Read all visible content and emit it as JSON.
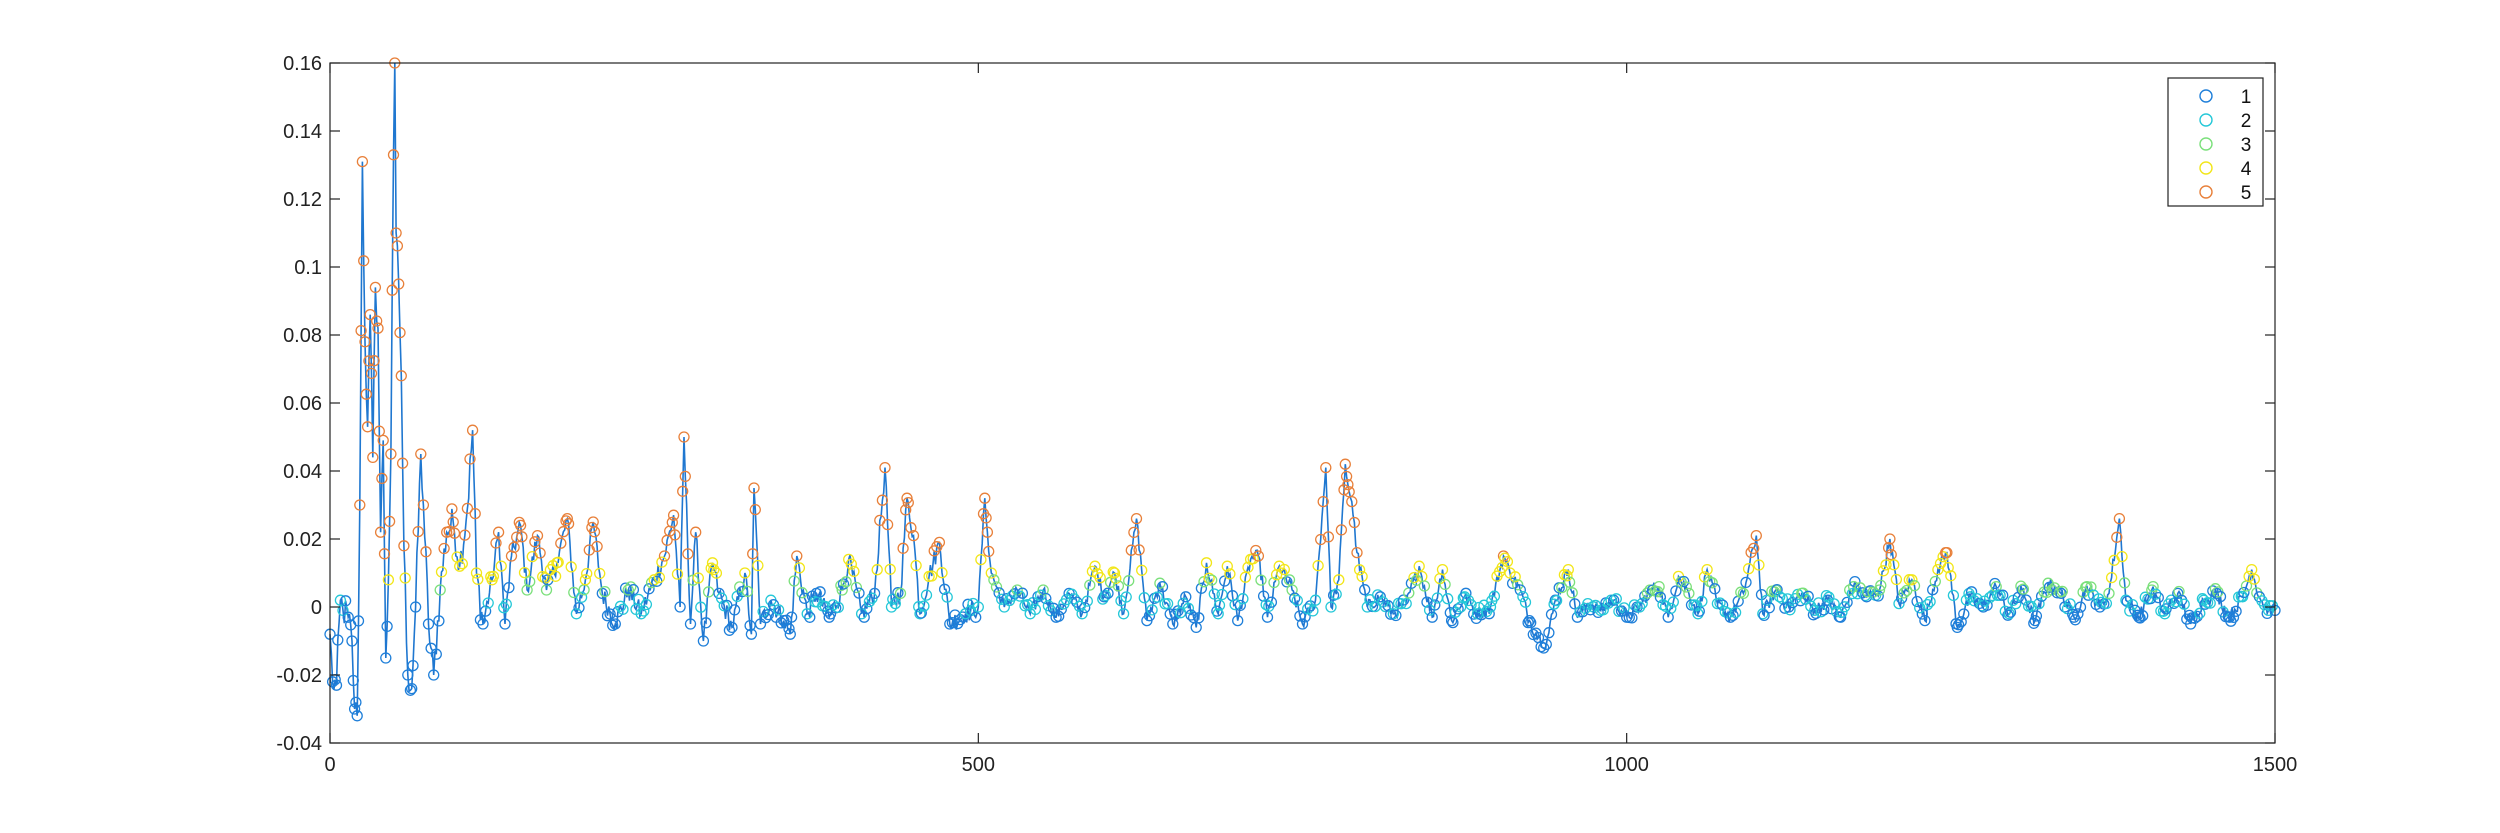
{
  "chart_data": {
    "type": "line",
    "title": "",
    "xlabel": "",
    "ylabel": "",
    "xlim": [
      0,
      1500
    ],
    "ylim": [
      -0.04,
      0.16
    ],
    "xticks": [
      0,
      500,
      1000,
      1500
    ],
    "xtick_labels": [
      "0",
      "500",
      "1000",
      "1500"
    ],
    "yticks": [
      -0.04,
      -0.02,
      0,
      0.02,
      0.04,
      0.06,
      0.08,
      0.1,
      0.12,
      0.14,
      0.16
    ],
    "ytick_labels": [
      "-0.04",
      "-0.02",
      "0",
      "0.02",
      "0.04",
      "0.06",
      "0.08",
      "0.1",
      "0.12",
      "0.14",
      "0.16"
    ],
    "grid": false,
    "legend_position": "top-right",
    "line_color": "#1f77d0",
    "marker": "circle-open",
    "series": [
      {
        "name": "1",
        "color": "#1f7fd9"
      },
      {
        "name": "2",
        "color": "#25c8d8"
      },
      {
        "name": "3",
        "color": "#7be07b"
      },
      {
        "name": "4",
        "color": "#f2e619"
      },
      {
        "name": "5",
        "color": "#e8803a"
      }
    ],
    "key_points": [
      [
        0,
        -0.008
      ],
      [
        2,
        -0.022
      ],
      [
        5,
        -0.023
      ],
      [
        8,
        0.002
      ],
      [
        10,
        -0.001
      ],
      [
        14,
        -0.003
      ],
      [
        17,
        -0.01
      ],
      [
        19,
        -0.03
      ],
      [
        21,
        -0.032
      ],
      [
        23,
        0.03
      ],
      [
        25,
        0.131
      ],
      [
        27,
        0.078
      ],
      [
        29,
        0.053
      ],
      [
        31,
        0.086
      ],
      [
        33,
        0.044
      ],
      [
        35,
        0.094
      ],
      [
        37,
        0.082
      ],
      [
        39,
        0.022
      ],
      [
        41,
        0.049
      ],
      [
        43,
        -0.015
      ],
      [
        45,
        0.008
      ],
      [
        47,
        0.045
      ],
      [
        49,
        0.133
      ],
      [
        50,
        0.16
      ],
      [
        51,
        0.11
      ],
      [
        53,
        0.095
      ],
      [
        55,
        0.068
      ],
      [
        57,
        0.018
      ],
      [
        60,
        -0.02
      ],
      [
        63,
        -0.024
      ],
      [
        66,
        0.0
      ],
      [
        70,
        0.045
      ],
      [
        72,
        0.03
      ],
      [
        76,
        -0.005
      ],
      [
        80,
        -0.02
      ],
      [
        85,
        0.005
      ],
      [
        90,
        0.022
      ],
      [
        95,
        0.025
      ],
      [
        100,
        0.012
      ],
      [
        106,
        0.029
      ],
      [
        110,
        0.052
      ],
      [
        113,
        0.01
      ],
      [
        118,
        -0.005
      ],
      [
        125,
        0.008
      ],
      [
        130,
        0.022
      ],
      [
        135,
        -0.005
      ],
      [
        140,
        0.015
      ],
      [
        147,
        0.024
      ],
      [
        152,
        0.005
      ],
      [
        160,
        0.021
      ],
      [
        167,
        0.005
      ],
      [
        175,
        0.013
      ],
      [
        183,
        0.026
      ],
      [
        190,
        -0.002
      ],
      [
        197,
        0.008
      ],
      [
        203,
        0.025
      ],
      [
        210,
        0.004
      ],
      [
        220,
        -0.005
      ],
      [
        230,
        0.005
      ],
      [
        240,
        -0.002
      ],
      [
        250,
        0.008
      ],
      [
        258,
        0.015
      ],
      [
        265,
        0.027
      ],
      [
        270,
        0.0
      ],
      [
        273,
        0.05
      ],
      [
        278,
        -0.005
      ],
      [
        282,
        0.022
      ],
      [
        288,
        -0.01
      ],
      [
        295,
        0.013
      ],
      [
        300,
        0.004
      ],
      [
        310,
        -0.006
      ],
      [
        320,
        0.01
      ],
      [
        325,
        -0.008
      ],
      [
        327,
        0.035
      ],
      [
        332,
        -0.005
      ],
      [
        340,
        0.002
      ],
      [
        350,
        -0.004
      ],
      [
        355,
        -0.008
      ],
      [
        360,
        0.015
      ],
      [
        368,
        -0.002
      ],
      [
        375,
        0.004
      ],
      [
        385,
        -0.003
      ],
      [
        395,
        0.005
      ],
      [
        400,
        0.014
      ],
      [
        410,
        -0.002
      ],
      [
        420,
        0.004
      ],
      [
        428,
        0.041
      ],
      [
        433,
        0.0
      ],
      [
        440,
        0.004
      ],
      [
        445,
        0.032
      ],
      [
        450,
        0.021
      ],
      [
        455,
        -0.002
      ],
      [
        462,
        0.009
      ],
      [
        470,
        0.019
      ],
      [
        478,
        -0.005
      ],
      [
        490,
        -0.002
      ],
      [
        500,
        0.0
      ],
      [
        505,
        0.032
      ],
      [
        507,
        0.022
      ],
      [
        510,
        0.01
      ],
      [
        520,
        0.0
      ],
      [
        530,
        0.005
      ],
      [
        540,
        -0.002
      ],
      [
        550,
        0.005
      ],
      [
        560,
        -0.003
      ],
      [
        570,
        0.004
      ],
      [
        580,
        -0.002
      ],
      [
        590,
        0.012
      ],
      [
        597,
        0.003
      ],
      [
        605,
        0.01
      ],
      [
        612,
        -0.002
      ],
      [
        622,
        0.026
      ],
      [
        630,
        -0.004
      ],
      [
        640,
        0.007
      ],
      [
        650,
        -0.005
      ],
      [
        660,
        0.003
      ],
      [
        668,
        -0.006
      ],
      [
        676,
        0.013
      ],
      [
        685,
        -0.002
      ],
      [
        692,
        0.012
      ],
      [
        700,
        -0.004
      ],
      [
        710,
        0.014
      ],
      [
        716,
        0.015
      ],
      [
        723,
        -0.003
      ],
      [
        732,
        0.012
      ],
      [
        742,
        0.005
      ],
      [
        750,
        -0.005
      ],
      [
        760,
        0.002
      ],
      [
        768,
        0.041
      ],
      [
        772,
        0.0
      ],
      [
        778,
        0.008
      ],
      [
        783,
        0.042
      ],
      [
        785,
        0.036
      ],
      [
        788,
        0.031
      ],
      [
        792,
        0.016
      ],
      [
        800,
        0.0
      ],
      [
        810,
        0.003
      ],
      [
        820,
        -0.002
      ],
      [
        830,
        0.001
      ],
      [
        840,
        0.012
      ],
      [
        850,
        -0.003
      ],
      [
        858,
        0.011
      ],
      [
        865,
        -0.004
      ],
      [
        875,
        0.003
      ],
      [
        885,
        -0.002
      ],
      [
        895,
        0.0
      ],
      [
        905,
        0.015
      ],
      [
        910,
        0.01
      ],
      [
        918,
        0.005
      ],
      [
        925,
        -0.004
      ],
      [
        932,
        -0.009
      ],
      [
        938,
        -0.011
      ],
      [
        945,
        0.002
      ],
      [
        955,
        0.011
      ],
      [
        962,
        -0.003
      ],
      [
        970,
        0.001
      ],
      [
        980,
        -0.001
      ],
      [
        990,
        0.002
      ],
      [
        1000,
        -0.003
      ],
      [
        1010,
        0.0
      ],
      [
        1018,
        0.005
      ],
      [
        1025,
        0.006
      ],
      [
        1032,
        -0.003
      ],
      [
        1040,
        0.009
      ],
      [
        1048,
        0.004
      ],
      [
        1055,
        -0.002
      ],
      [
        1062,
        0.011
      ],
      [
        1070,
        0.001
      ],
      [
        1080,
        -0.003
      ],
      [
        1090,
        0.004
      ],
      [
        1100,
        0.021
      ],
      [
        1105,
        -0.002
      ],
      [
        1115,
        0.005
      ],
      [
        1125,
        0.0
      ],
      [
        1135,
        0.004
      ],
      [
        1145,
        -0.001
      ],
      [
        1155,
        0.002
      ],
      [
        1165,
        -0.003
      ],
      [
        1175,
        0.006
      ],
      [
        1185,
        0.003
      ],
      [
        1195,
        0.005
      ],
      [
        1203,
        0.02
      ],
      [
        1210,
        0.001
      ],
      [
        1220,
        0.008
      ],
      [
        1230,
        -0.004
      ],
      [
        1240,
        0.011
      ],
      [
        1247,
        0.016
      ],
      [
        1255,
        -0.006
      ],
      [
        1265,
        0.003
      ],
      [
        1275,
        0.0
      ],
      [
        1285,
        0.006
      ],
      [
        1295,
        -0.002
      ],
      [
        1305,
        0.005
      ],
      [
        1315,
        -0.004
      ],
      [
        1325,
        0.007
      ],
      [
        1335,
        0.004
      ],
      [
        1345,
        -0.003
      ],
      [
        1355,
        0.006
      ],
      [
        1365,
        0.0
      ],
      [
        1372,
        0.004
      ],
      [
        1380,
        0.026
      ],
      [
        1385,
        0.002
      ],
      [
        1395,
        -0.003
      ],
      [
        1405,
        0.005
      ],
      [
        1415,
        -0.002
      ],
      [
        1425,
        0.004
      ],
      [
        1435,
        -0.005
      ],
      [
        1445,
        0.002
      ],
      [
        1455,
        0.004
      ],
      [
        1465,
        -0.003
      ],
      [
        1475,
        0.003
      ],
      [
        1482,
        0.011
      ],
      [
        1488,
        0.003
      ],
      [
        1495,
        -0.001
      ],
      [
        1500,
        -0.001
      ]
    ]
  }
}
